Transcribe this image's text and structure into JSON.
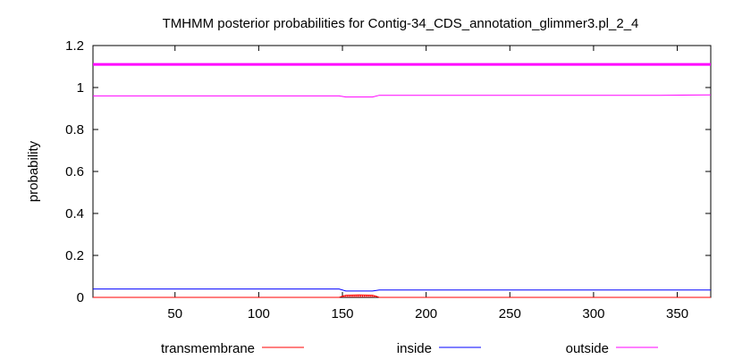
{
  "chart_data": {
    "type": "line",
    "title": "TMHMM posterior probabilities for Contig-34_CDS_annotation_glimmer3.pl_2_4",
    "xlabel": "",
    "ylabel": "probability",
    "xlim": [
      1,
      370
    ],
    "ylim": [
      0,
      1.2
    ],
    "xticks": [
      50,
      100,
      150,
      200,
      250,
      300,
      350
    ],
    "yticks": [
      0,
      0.2,
      0.4,
      0.6,
      0.8,
      1,
      1.2
    ],
    "xtick_labels": [
      "50",
      "100",
      "150",
      "200",
      "250",
      "300",
      "350"
    ],
    "ytick_labels": [
      "0",
      "0.2",
      "0.4",
      "0.6",
      "0.8",
      "1",
      "1.2"
    ],
    "grid": false,
    "legend_position": "bottom",
    "top_band": {
      "y": 1.11,
      "color": "#ff00ff"
    },
    "series": [
      {
        "name": "transmembrane",
        "color": "#ff0000",
        "x": [
          1,
          148,
          150,
          152,
          160,
          168,
          170,
          172,
          370
        ],
        "y": [
          0.0,
          0.0,
          0.006,
          0.01,
          0.012,
          0.01,
          0.006,
          0.0,
          0.0
        ]
      },
      {
        "name": "inside",
        "color": "#0000ff",
        "x": [
          1,
          148,
          152,
          168,
          172,
          370
        ],
        "y": [
          0.04,
          0.04,
          0.03,
          0.03,
          0.035,
          0.035
        ]
      },
      {
        "name": "outside",
        "color": "#ff00ff",
        "x": [
          1,
          148,
          152,
          168,
          172,
          340,
          370
        ],
        "y": [
          0.96,
          0.96,
          0.955,
          0.955,
          0.963,
          0.963,
          0.965
        ]
      }
    ]
  }
}
